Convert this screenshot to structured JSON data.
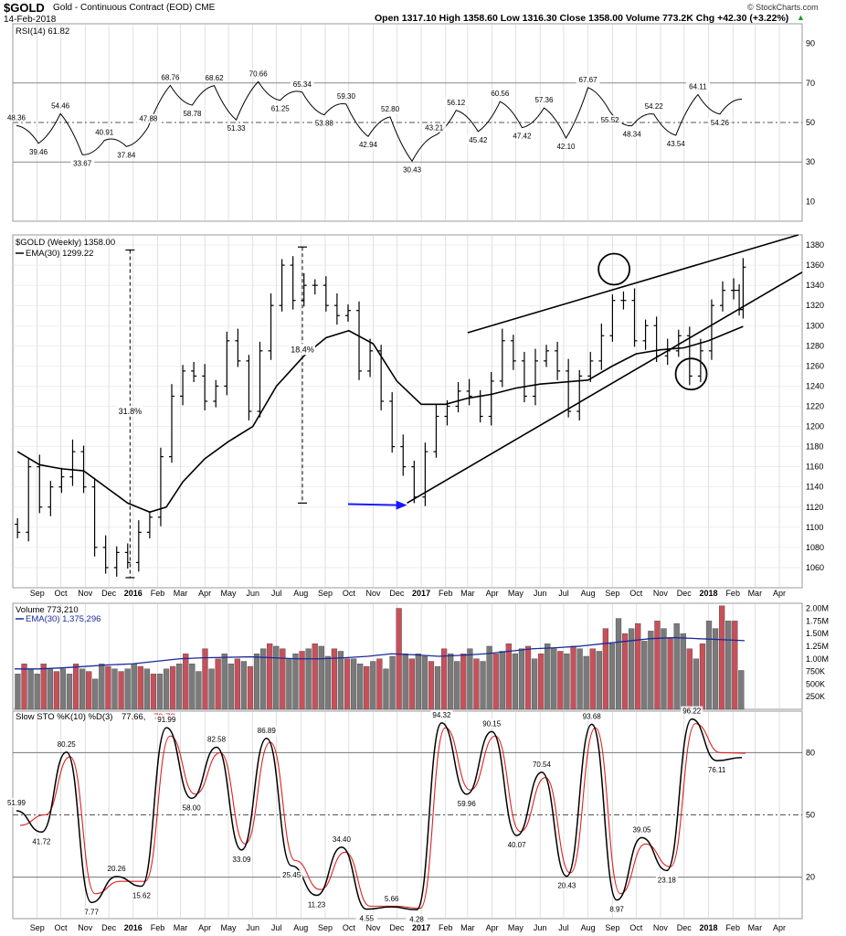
{
  "header": {
    "symbol": "$GOLD",
    "name": "Gold - Continuous Contract (EOD)",
    "exchange": "CME",
    "date": "14-Feb-2018",
    "quote": "Open 1317.10  High 1358.60  Low 1316.30  Close 1358.00  Volume 773.2K  Chg +42.30 (+3.22%)",
    "credit": "© StockCharts.com",
    "chg_arrow": "▲"
  },
  "colors": {
    "price": "#000000",
    "rsi": "#000000",
    "volume_up": "#c8505a",
    "volume_down": "#7a7a7a",
    "volume_ema": "#1a2a9a",
    "stoch_k": "#000000",
    "stoch_d": "#e02020",
    "arrow": "#1a1aff",
    "grid": "#cccccc"
  },
  "chart_data": [
    {
      "type": "line",
      "panel": "rsi",
      "label": "RSI(14) 61.82",
      "ylim": [
        0,
        100
      ],
      "yticks": [
        10,
        30,
        50,
        70,
        90
      ],
      "reference_lines": [
        30,
        50,
        70
      ],
      "series": [
        {
          "name": "RSI(14)",
          "values": [
            48.36,
            39.46,
            54.46,
            33.67,
            40.91,
            37.84,
            47.88,
            68.76,
            58.78,
            68.62,
            51.33,
            70.66,
            61.25,
            65.34,
            53.88,
            59.3,
            42.94,
            52.8,
            30.43,
            43.21,
            56.12,
            45.42,
            60.56,
            47.42,
            57.36,
            42.1,
            67.67,
            55.52,
            48.34,
            54.22,
            43.54,
            64.11,
            54.26,
            61.82
          ]
        }
      ],
      "data_labels": [
        "48.36",
        "39.46",
        "54.46",
        "33.67",
        "40.91",
        "37.84",
        "47.88",
        "68.76",
        "58.78",
        "68.62",
        "51.33",
        "70.66",
        "61.25",
        "65.34",
        "53.88",
        "59.30",
        "42.94",
        "52.80",
        "30.43",
        "43.21",
        "56.12",
        "45.42",
        "60.56",
        "47.42",
        "57.36",
        "42.10",
        "67.67",
        "55.52",
        "48.34",
        "54.22",
        "43.54",
        "64.11",
        "54.26"
      ]
    },
    {
      "type": "bar",
      "panel": "price",
      "label": "$GOLD (Weekly) 1358.00",
      "ema_label": "EMA(30) 1299.22",
      "ylim": [
        1040,
        1390
      ],
      "yticks": [
        1060,
        1080,
        1100,
        1120,
        1140,
        1160,
        1180,
        1200,
        1220,
        1240,
        1260,
        1280,
        1300,
        1320,
        1340,
        1360,
        1380
      ],
      "x_range": [
        "2015-08-01",
        "2018-04-30"
      ],
      "series": [
        {
          "name": "$GOLD (Weekly)",
          "values": [
            {
              "x": "2015-08-07",
              "close": 1095
            },
            {
              "x": "2015-08-21",
              "close": 1160
            },
            {
              "x": "2015-09-04",
              "close": 1120
            },
            {
              "x": "2015-09-18",
              "close": 1140
            },
            {
              "x": "2015-10-02",
              "close": 1150
            },
            {
              "x": "2015-10-16",
              "close": 1175
            },
            {
              "x": "2015-10-30",
              "close": 1140
            },
            {
              "x": "2015-11-13",
              "close": 1080
            },
            {
              "x": "2015-11-27",
              "close": 1060
            },
            {
              "x": "2015-12-11",
              "close": 1075
            },
            {
              "x": "2015-12-25",
              "close": 1065
            },
            {
              "x": "2016-01-08",
              "close": 1095
            },
            {
              "x": "2016-01-22",
              "close": 1110
            },
            {
              "x": "2016-02-05",
              "close": 1170
            },
            {
              "x": "2016-02-19",
              "close": 1230
            },
            {
              "x": "2016-03-04",
              "close": 1255
            },
            {
              "x": "2016-03-18",
              "close": 1250
            },
            {
              "x": "2016-04-01",
              "close": 1225
            },
            {
              "x": "2016-04-15",
              "close": 1240
            },
            {
              "x": "2016-04-29",
              "close": 1285
            },
            {
              "x": "2016-05-13",
              "close": 1265
            },
            {
              "x": "2016-05-27",
              "close": 1215
            },
            {
              "x": "2016-06-10",
              "close": 1275
            },
            {
              "x": "2016-06-24",
              "close": 1320
            },
            {
              "x": "2016-07-08",
              "close": 1360
            },
            {
              "x": "2016-07-22",
              "close": 1325
            },
            {
              "x": "2016-08-05",
              "close": 1340
            },
            {
              "x": "2016-08-19",
              "close": 1340
            },
            {
              "x": "2016-09-02",
              "close": 1320
            },
            {
              "x": "2016-09-16",
              "close": 1310
            },
            {
              "x": "2016-09-30",
              "close": 1315
            },
            {
              "x": "2016-10-14",
              "close": 1255
            },
            {
              "x": "2016-10-28",
              "close": 1275
            },
            {
              "x": "2016-11-11",
              "close": 1225
            },
            {
              "x": "2016-11-25",
              "close": 1180
            },
            {
              "x": "2016-12-09",
              "close": 1160
            },
            {
              "x": "2016-12-23",
              "close": 1130
            },
            {
              "x": "2017-01-06",
              "close": 1175
            },
            {
              "x": "2017-01-20",
              "close": 1210
            },
            {
              "x": "2017-02-03",
              "close": 1220
            },
            {
              "x": "2017-02-17",
              "close": 1235
            },
            {
              "x": "2017-03-03",
              "close": 1230
            },
            {
              "x": "2017-03-17",
              "close": 1210
            },
            {
              "x": "2017-03-31",
              "close": 1245
            },
            {
              "x": "2017-04-14",
              "close": 1285
            },
            {
              "x": "2017-04-28",
              "close": 1265
            },
            {
              "x": "2017-05-12",
              "close": 1230
            },
            {
              "x": "2017-05-26",
              "close": 1265
            },
            {
              "x": "2017-06-09",
              "close": 1275
            },
            {
              "x": "2017-06-23",
              "close": 1255
            },
            {
              "x": "2017-07-07",
              "close": 1215
            },
            {
              "x": "2017-07-21",
              "close": 1250
            },
            {
              "x": "2017-08-04",
              "close": 1265
            },
            {
              "x": "2017-08-18",
              "close": 1290
            },
            {
              "x": "2017-09-01",
              "close": 1325
            },
            {
              "x": "2017-09-15",
              "close": 1325
            },
            {
              "x": "2017-09-29",
              "close": 1285
            },
            {
              "x": "2017-10-13",
              "close": 1300
            },
            {
              "x": "2017-10-27",
              "close": 1270
            },
            {
              "x": "2017-11-10",
              "close": 1275
            },
            {
              "x": "2017-11-24",
              "close": 1290
            },
            {
              "x": "2017-12-08",
              "close": 1250
            },
            {
              "x": "2017-12-22",
              "close": 1275
            },
            {
              "x": "2018-01-05",
              "close": 1320
            },
            {
              "x": "2018-01-19",
              "close": 1335
            },
            {
              "x": "2018-02-02",
              "close": 1335
            },
            {
              "x": "2018-02-09",
              "close": 1316
            },
            {
              "x": "2018-02-14",
              "close": 1358
            }
          ]
        },
        {
          "name": "EMA(30)",
          "values": [
            {
              "x": "2015-08-07",
              "y": 1175
            },
            {
              "x": "2015-09-04",
              "y": 1162
            },
            {
              "x": "2015-10-02",
              "y": 1158
            },
            {
              "x": "2015-10-30",
              "y": 1156
            },
            {
              "x": "2015-11-27",
              "y": 1140
            },
            {
              "x": "2015-12-25",
              "y": 1124
            },
            {
              "x": "2016-01-22",
              "y": 1115
            },
            {
              "x": "2016-02-12",
              "y": 1120
            },
            {
              "x": "2016-03-04",
              "y": 1145
            },
            {
              "x": "2016-04-01",
              "y": 1168
            },
            {
              "x": "2016-05-01",
              "y": 1185
            },
            {
              "x": "2016-06-01",
              "y": 1200
            },
            {
              "x": "2016-07-01",
              "y": 1240
            },
            {
              "x": "2016-08-05",
              "y": 1270
            },
            {
              "x": "2016-09-02",
              "y": 1288
            },
            {
              "x": "2016-10-01",
              "y": 1295
            },
            {
              "x": "2016-11-01",
              "y": 1282
            },
            {
              "x": "2016-12-01",
              "y": 1245
            },
            {
              "x": "2017-01-01",
              "y": 1222
            },
            {
              "x": "2017-02-01",
              "y": 1222
            },
            {
              "x": "2017-03-01",
              "y": 1228
            },
            {
              "x": "2017-04-01",
              "y": 1232
            },
            {
              "x": "2017-05-01",
              "y": 1238
            },
            {
              "x": "2017-06-01",
              "y": 1242
            },
            {
              "x": "2017-07-01",
              "y": 1244
            },
            {
              "x": "2017-08-01",
              "y": 1246
            },
            {
              "x": "2017-09-01",
              "y": 1260
            },
            {
              "x": "2017-10-01",
              "y": 1272
            },
            {
              "x": "2017-11-01",
              "y": 1276
            },
            {
              "x": "2017-12-01",
              "y": 1278
            },
            {
              "x": "2018-01-01",
              "y": 1285
            },
            {
              "x": "2018-02-14",
              "y": 1299.22
            }
          ]
        }
      ],
      "annotations": {
        "pct_labels": [
          "31.8%",
          "18.4%"
        ],
        "trendlines": [
          {
            "from": {
              "x": "2017-03-01",
              "y": 1293
            },
            "to": {
              "x": "2018-04-25",
              "y": 1390
            }
          },
          {
            "from": {
              "x": "2016-12-14",
              "y": 1124
            },
            "to": {
              "x": "2018-04-30",
              "y": 1353
            }
          }
        ],
        "measure_lines": [
          {
            "x": "2015-12-28",
            "from": 1050,
            "to": 1375
          },
          {
            "x": "2016-08-03",
            "from": 1124,
            "to": 1378
          }
        ],
        "arrow": {
          "from": {
            "x": "2016-09-30",
            "y": 1123
          },
          "to": {
            "x": "2016-12-14",
            "y": 1122
          }
        },
        "circles": [
          {
            "x": "2017-09-03",
            "y": 1356
          },
          {
            "x": "2017-12-10",
            "y": 1252
          }
        ]
      }
    },
    {
      "type": "bar",
      "panel": "volume",
      "label": "Volume 773,210",
      "ema_label": "EMA(30) 1,375,296",
      "ylim": [
        0,
        2100000
      ],
      "ytick_labels": [
        "250K",
        "500K",
        "750K",
        "1.00M",
        "1.25M",
        "1.50M",
        "1.75M",
        "2.00M"
      ],
      "yticks": [
        250000,
        500000,
        750000,
        1000000,
        1250000,
        1500000,
        1750000,
        2000000
      ],
      "values_approx_M": [
        0.7,
        0.9,
        0.8,
        0.7,
        0.9,
        0.8,
        0.75,
        0.8,
        0.7,
        0.9,
        0.8,
        0.75,
        0.6,
        0.9,
        0.85,
        0.8,
        0.75,
        0.8,
        0.9,
        0.85,
        0.8,
        0.7,
        0.7,
        0.8,
        0.85,
        0.9,
        1.1,
        0.9,
        0.75,
        1.2,
        0.8,
        1.0,
        1.1,
        0.9,
        1.0,
        0.95,
        0.85,
        1.1,
        1.2,
        1.3,
        1.25,
        1.2,
        1.0,
        1.1,
        1.15,
        1.2,
        1.3,
        1.25,
        1.05,
        1.2,
        1.15,
        1.0,
        1.0,
        0.9,
        0.85,
        0.95,
        1.0,
        0.8,
        1.05,
        2.0,
        1.1,
        1.0,
        1.1,
        1.05,
        0.95,
        0.85,
        1.2,
        1.1,
        0.95,
        1.1,
        1.2,
        1.0,
        0.95,
        1.25,
        1.1,
        1.15,
        1.3,
        1.1,
        1.2,
        1.25,
        1.0,
        1.1,
        1.3,
        1.2,
        1.15,
        1.1,
        1.25,
        1.2,
        1.05,
        1.2,
        1.15,
        1.6,
        1.3,
        1.8,
        1.5,
        1.6,
        1.7,
        1.35,
        1.55,
        1.75,
        1.6,
        1.4,
        1.7,
        1.5,
        1.2,
        1.0,
        1.3,
        1.75,
        1.6,
        2.05,
        1.75,
        1.75,
        0.77
      ],
      "ema_approx_M": [
        0.8,
        0.8,
        0.82,
        0.85,
        0.88,
        0.9,
        0.95,
        1.0,
        1.02,
        1.03,
        1.04,
        1.02,
        1.0,
        1.0,
        1.02,
        1.05,
        1.1,
        1.08,
        1.05,
        1.07,
        1.1,
        1.15,
        1.2,
        1.22,
        1.25,
        1.3,
        1.35,
        1.4,
        1.42,
        1.4,
        1.38,
        1.36
      ]
    },
    {
      "type": "line",
      "panel": "stochastic",
      "label": "Slow STO %K(10) %D(3) 77.66, 79.73",
      "label_k": "77.66,",
      "label_d": "79.73",
      "ylim": [
        0,
        100
      ],
      "yticks": [
        20,
        50,
        80
      ],
      "reference_lines": [
        20,
        50,
        80
      ],
      "series": [
        {
          "name": "%K(10)",
          "values": [
            51.99,
            41.72,
            80.25,
            7.77,
            20.26,
            15.62,
            91.99,
            58.0,
            82.58,
            33.09,
            86.89,
            25.45,
            11.23,
            34.4,
            4.55,
            5.66,
            4.28,
            94.32,
            59.96,
            90.15,
            40.07,
            70.54,
            20.43,
            93.68,
            8.97,
            39.05,
            23.18,
            96.22,
            76.11,
            77.66
          ]
        },
        {
          "name": "%D(3)",
          "values": [
            45,
            50,
            78,
            12,
            18,
            18,
            88,
            60,
            80,
            36,
            85,
            28,
            14,
            32,
            6,
            6,
            5,
            92,
            62,
            88,
            42,
            68,
            22,
            92,
            12,
            36,
            25,
            94,
            80,
            79.73
          ]
        }
      ],
      "data_labels": [
        "51.99",
        "41.72",
        "80.25",
        "7.77",
        "20.26",
        "15.62",
        "91.99",
        "58.00",
        "82.58",
        "33.09",
        "86.89",
        "25.45",
        "11.23",
        "34.40",
        "4.55",
        "5.66",
        "4.28",
        "94.32",
        "59.96",
        "90.15",
        "40.07",
        "70.54",
        "20.43",
        "93.68",
        "8.97",
        "39.05",
        "23.18",
        "96.22",
        "76.11"
      ]
    }
  ],
  "x_axis": {
    "labels": [
      "Sep",
      "Oct",
      "Nov",
      "Dec",
      "2016",
      "Feb",
      "Mar",
      "Apr",
      "May",
      "Jun",
      "Jul",
      "Aug",
      "Sep",
      "Oct",
      "Nov",
      "Dec",
      "2017",
      "Feb",
      "Mar",
      "Apr",
      "May",
      "Jun",
      "Jul",
      "Aug",
      "Sep",
      "Oct",
      "Nov",
      "Dec",
      "2018",
      "Feb",
      "Mar",
      "Apr"
    ],
    "bold_labels": [
      "2016",
      "2017",
      "2018"
    ]
  }
}
